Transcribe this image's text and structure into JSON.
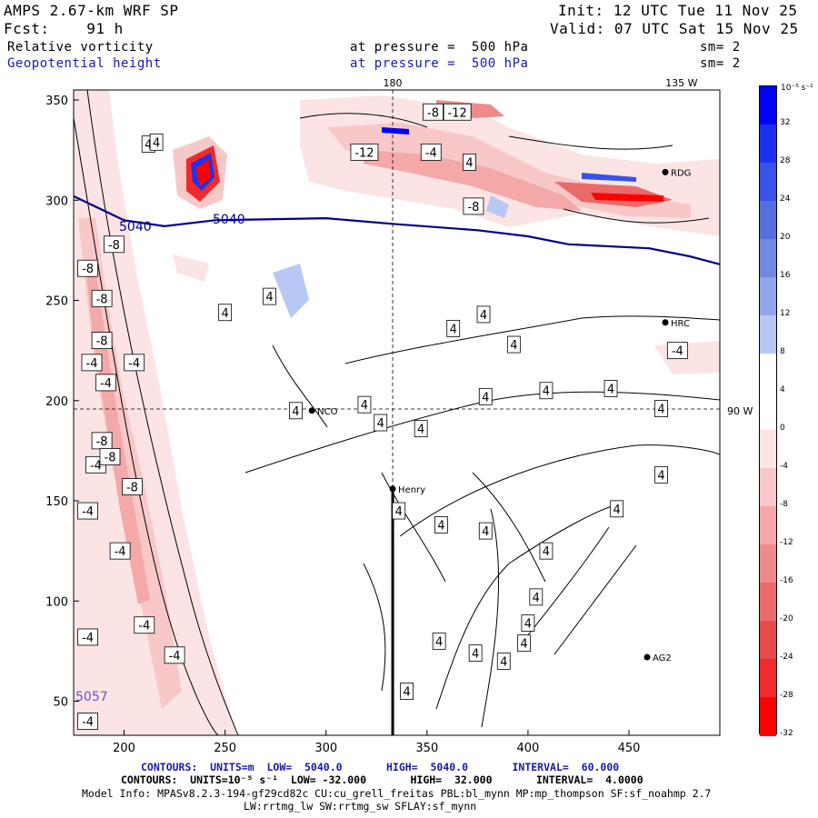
{
  "header": {
    "model": "AMPS 2.67-km WRF SP",
    "init": "Init: 12 UTC Tue 11 Nov 25",
    "fcst": "Fcst:    91 h",
    "valid": "Valid: 07 UTC Sat 15 Nov 25",
    "field1": "Relative vorticity",
    "field1_level": "at pressure =  500 hPa",
    "field1_sm": "sm= 2",
    "field2": "Geopotential height",
    "field2_level": "at pressure =  500 hPa",
    "field2_sm": "sm= 2"
  },
  "colors": {
    "positive_max": "#0000ff",
    "negative_max": "#ff0000",
    "height_contour": "#00008b"
  },
  "chart_data": {
    "type": "contour-map",
    "title": "Relative vorticity / Geopotential height at 500 hPa",
    "xlim": [
      175,
      495
    ],
    "ylim": [
      33,
      355
    ],
    "x_ticks": [
      200,
      250,
      300,
      350,
      400,
      450
    ],
    "y_ticks": [
      50,
      100,
      150,
      200,
      250,
      300,
      350
    ],
    "meridian_labels": [
      {
        "text": "180",
        "x": 333
      },
      {
        "text": "135 W",
        "x": 476
      }
    ],
    "parallel_label": {
      "text": "90 W",
      "y": 195
    },
    "grid_lines": {
      "vertical_x": 333,
      "horizontal_y": 195
    },
    "stations": [
      {
        "name": "HRC",
        "x": 468,
        "y": 239
      },
      {
        "name": "NCO",
        "x": 293,
        "y": 195
      },
      {
        "name": "Henry",
        "x": 333,
        "y": 156
      },
      {
        "name": "AG2",
        "x": 459,
        "y": 72
      },
      {
        "name": "RDG",
        "x": 468,
        "y": 314
      }
    ],
    "height_contour": {
      "level": 5040,
      "labels": [
        "5040",
        "5040"
      ],
      "edge_label": "5057",
      "path": [
        [
          175,
          302
        ],
        [
          200,
          290
        ],
        [
          220,
          287
        ],
        [
          245,
          290
        ],
        [
          300,
          291
        ],
        [
          335,
          288
        ],
        [
          375,
          285
        ],
        [
          400,
          282
        ],
        [
          420,
          278
        ],
        [
          460,
          276
        ],
        [
          480,
          272
        ],
        [
          495,
          268
        ]
      ]
    },
    "vorticity_labels": [
      {
        "text": "4",
        "x": 212,
        "y": 328
      },
      {
        "text": "4",
        "x": 250,
        "y": 244
      },
      {
        "text": "-8",
        "x": 195,
        "y": 278
      },
      {
        "text": "-8",
        "x": 182,
        "y": 266
      },
      {
        "text": "-8",
        "x": 189,
        "y": 251
      },
      {
        "text": "-4",
        "x": 184,
        "y": 219
      },
      {
        "text": "-8",
        "x": 189,
        "y": 230
      },
      {
        "text": "-4",
        "x": 191,
        "y": 209
      },
      {
        "text": "-4",
        "x": 205,
        "y": 219
      },
      {
        "text": "-8",
        "x": 189,
        "y": 180
      },
      {
        "text": "-4",
        "x": 186,
        "y": 168
      },
      {
        "text": "-8",
        "x": 193,
        "y": 172
      },
      {
        "text": "-8",
        "x": 204,
        "y": 157
      },
      {
        "text": "-4",
        "x": 182,
        "y": 145
      },
      {
        "text": "-4",
        "x": 198,
        "y": 125
      },
      {
        "text": "-4",
        "x": 210,
        "y": 88
      },
      {
        "text": "-4",
        "x": 182,
        "y": 82
      },
      {
        "text": "-4",
        "x": 225,
        "y": 73
      },
      {
        "text": "-4",
        "x": 182,
        "y": 40
      },
      {
        "text": "4",
        "x": 216,
        "y": 329
      },
      {
        "text": "-12",
        "x": 319,
        "y": 324
      },
      {
        "text": "-8",
        "x": 353,
        "y": 344
      },
      {
        "text": "-12",
        "x": 365,
        "y": 344
      },
      {
        "text": "-4",
        "x": 352,
        "y": 324
      },
      {
        "text": "4",
        "x": 371,
        "y": 319
      },
      {
        "text": "-8",
        "x": 373,
        "y": 297
      },
      {
        "text": "4",
        "x": 272,
        "y": 252
      },
      {
        "text": "4",
        "x": 285,
        "y": 195
      },
      {
        "text": "4",
        "x": 319,
        "y": 198
      },
      {
        "text": "4",
        "x": 327,
        "y": 189
      },
      {
        "text": "4",
        "x": 347,
        "y": 186
      },
      {
        "text": "4",
        "x": 363,
        "y": 236
      },
      {
        "text": "4",
        "x": 378,
        "y": 243
      },
      {
        "text": "4",
        "x": 393,
        "y": 228
      },
      {
        "text": "4",
        "x": 379,
        "y": 202
      },
      {
        "text": "4",
        "x": 409,
        "y": 205
      },
      {
        "text": "4",
        "x": 441,
        "y": 206
      },
      {
        "text": "4",
        "x": 466,
        "y": 196
      },
      {
        "text": "-4",
        "x": 474,
        "y": 225
      },
      {
        "text": "4",
        "x": 466,
        "y": 163
      },
      {
        "text": "4",
        "x": 444,
        "y": 146
      },
      {
        "text": "4",
        "x": 336,
        "y": 145
      },
      {
        "text": "4",
        "x": 357,
        "y": 138
      },
      {
        "text": "4",
        "x": 379,
        "y": 135
      },
      {
        "text": "4",
        "x": 409,
        "y": 125
      },
      {
        "text": "4",
        "x": 404,
        "y": 102
      },
      {
        "text": "4",
        "x": 400,
        "y": 89
      },
      {
        "text": "4",
        "x": 398,
        "y": 79
      },
      {
        "text": "4",
        "x": 388,
        "y": 70
      },
      {
        "text": "4",
        "x": 374,
        "y": 74
      },
      {
        "text": "4",
        "x": 356,
        "y": 80
      },
      {
        "text": "4",
        "x": 340,
        "y": 55
      }
    ],
    "colorbar": {
      "unit": "10⁻⁵ s⁻¹",
      "ticks": [
        "32",
        "28",
        "24",
        "20",
        "16",
        "12",
        "8",
        "4",
        "0",
        "-4",
        "-8",
        "-12",
        "-16",
        "-20",
        "-24",
        "-28",
        "-32"
      ],
      "colors": [
        "#0000ff",
        "#1a33f0",
        "#3a53e6",
        "#5570dd",
        "#6f88e0",
        "#90a8ea",
        "#b8c8f4",
        "#ffffff",
        "#ffffff",
        "#fde4e4",
        "#f8c8c8",
        "#f4a8a8",
        "#ef8a8a",
        "#ea6a6a",
        "#e74a4a",
        "#f02a2a",
        "#ff0000"
      ]
    }
  },
  "footer": {
    "line1a": "CONTOURS:  UNITS=m  LOW=  5040.0       HIGH=  5040.0       INTERVAL=  60.000",
    "line2": "CONTOURS:  UNITS=10⁻⁵ s⁻¹  LOW= -32.000       HIGH=  32.000       INTERVAL=  4.0000",
    "line3": "Model Info: MPASv8.2.3-194-gf29cd82c CU:cu_grell_freitas PBL:bl_mynn MP:mp_thompson SF:sf_noahmp 2.7",
    "line4": "LW:rrtmg_lw SW:rrtmg_sw SFLAY:sf_mynn"
  }
}
